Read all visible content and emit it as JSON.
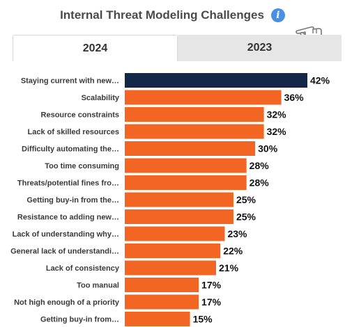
{
  "header": {
    "title": "Internal Threat Modeling Challenges",
    "info_icon": "info-icon",
    "pointer_icon": "pointing-hand-icon"
  },
  "tabs": [
    {
      "label": "2024",
      "active": true
    },
    {
      "label": "2023",
      "active": false
    }
  ],
  "colors": {
    "highlight": "#152748",
    "bar": "#f26522",
    "tab_inactive": "#e6e6e6",
    "info": "#4a90e2"
  },
  "chart_data": {
    "type": "bar",
    "orientation": "horizontal",
    "title": "Internal Threat Modeling Challenges",
    "categories": [
      "Staying current with new…",
      "Scalability",
      "Resource constraints",
      "Lack of skilled resources",
      "Difficulty automating the…",
      "Too time consuming",
      "Threats/potential fines fro…",
      "Getting buy-in from the…",
      "Resistance to adding new…",
      "Lack of understanding why…",
      "General lack of understandi…",
      "Lack of consistency",
      "Too manual",
      "Not high enough of a priority",
      "Getting buy-in from…"
    ],
    "values": [
      42,
      36,
      32,
      32,
      30,
      28,
      28,
      25,
      25,
      23,
      22,
      21,
      17,
      17,
      15
    ],
    "value_labels": [
      "42%",
      "36%",
      "32%",
      "32%",
      "30%",
      "28%",
      "28%",
      "25%",
      "25%",
      "23%",
      "22%",
      "21%",
      "17%",
      "17%",
      "15%"
    ],
    "unit": "%",
    "xlim": [
      0,
      42
    ],
    "grid": false,
    "legend": "none",
    "highlight_index": 0
  }
}
